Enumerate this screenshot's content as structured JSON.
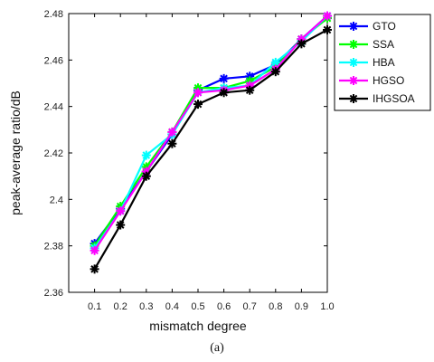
{
  "chart_data": {
    "type": "line",
    "xlabel": "mismatch degree",
    "ylabel": "peak-average ratio/dB",
    "caption": "(a)",
    "x": [
      0.1,
      0.2,
      0.3,
      0.4,
      0.5,
      0.6,
      0.7,
      0.8,
      0.9,
      1.0
    ],
    "x_tick_labels": [
      "0.1",
      "0.2",
      "0.3",
      "0.4",
      "0.5",
      "0.6",
      "0.7",
      "0.8",
      "0.9",
      "1.0"
    ],
    "y_tick_labels": [
      "2.36",
      "2.38",
      "2.4",
      "2.42",
      "2.44",
      "2.46",
      "2.48"
    ],
    "xlim": [
      0,
      1.0
    ],
    "ylim": [
      2.36,
      2.48
    ],
    "y_ticks": [
      2.36,
      2.38,
      2.4,
      2.42,
      2.44,
      2.46,
      2.48
    ],
    "grid": false,
    "legend_position": "outside-right",
    "series": [
      {
        "name": "GTO",
        "color": "#0000ff",
        "values": [
          2.381,
          2.396,
          2.412,
          2.428,
          2.447,
          2.452,
          2.453,
          2.458,
          2.469,
          2.479
        ]
      },
      {
        "name": "SSA",
        "color": "#00ff00",
        "values": [
          2.38,
          2.397,
          2.414,
          2.429,
          2.448,
          2.448,
          2.451,
          2.457,
          2.469,
          2.478
        ]
      },
      {
        "name": "HBA",
        "color": "#00ffff",
        "values": [
          2.379,
          2.395,
          2.419,
          2.428,
          2.446,
          2.448,
          2.449,
          2.459,
          2.468,
          2.479
        ]
      },
      {
        "name": "HGSO",
        "color": "#ff00ff",
        "values": [
          2.378,
          2.395,
          2.412,
          2.429,
          2.446,
          2.447,
          2.449,
          2.456,
          2.469,
          2.479
        ]
      },
      {
        "name": "IHGSOA",
        "color": "#000000",
        "values": [
          2.37,
          2.389,
          2.41,
          2.424,
          2.441,
          2.446,
          2.447,
          2.455,
          2.467,
          2.473
        ]
      }
    ]
  }
}
